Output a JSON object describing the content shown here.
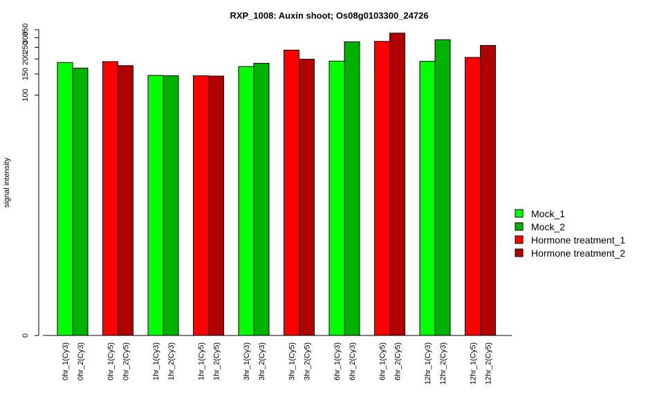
{
  "chart_data": {
    "type": "bar",
    "title": "RXP_1008: Auxin shoot; Os08g0103300_24726",
    "xlabel": "",
    "ylabel": "signal intensity",
    "y_ticks": [
      0,
      100,
      150,
      200,
      250,
      300,
      350
    ],
    "y_tick_labels": [
      "0",
      "100",
      "150",
      "200",
      "250",
      "300",
      "350"
    ],
    "y_scale": "log",
    "ylim": [
      0,
      350
    ],
    "grid": false,
    "legend_position": "right",
    "series": [
      {
        "name": "Mock_1",
        "color": "#00ff00"
      },
      {
        "name": "Mock_2",
        "color": "#00b200"
      },
      {
        "name": "Hormone treatment_1",
        "color": "#ff0000"
      },
      {
        "name": "Hormone treatment_2",
        "color": "#b20000"
      }
    ],
    "bars": [
      {
        "label": "0hr_1(Cy3)",
        "value": 187,
        "series": 0
      },
      {
        "label": "0hr_2(Cy3)",
        "value": 168,
        "series": 1
      },
      {
        "label": "0hr_1(Cy5)",
        "value": 190,
        "series": 2
      },
      {
        "label": "0hr_2(Cy5)",
        "value": 176,
        "series": 3
      },
      {
        "label": "1hr_1(Cy3)",
        "value": 146,
        "series": 0
      },
      {
        "label": "1hr_2(Cy3)",
        "value": 145,
        "series": 1
      },
      {
        "label": "1hr_1(Cy5)",
        "value": 145,
        "series": 2
      },
      {
        "label": "1hr_2(Cy5)",
        "value": 144,
        "series": 3
      },
      {
        "label": "3hr_1(Cy3)",
        "value": 173,
        "series": 0
      },
      {
        "label": "3hr_2(Cy3)",
        "value": 184,
        "series": 1
      },
      {
        "label": "3hr_1(Cy5)",
        "value": 237,
        "series": 2
      },
      {
        "label": "3hr_2(Cy5)",
        "value": 199,
        "series": 3
      },
      {
        "label": "6hr_1(Cy3)",
        "value": 192,
        "series": 0
      },
      {
        "label": "6hr_2(Cy3)",
        "value": 278,
        "series": 1
      },
      {
        "label": "6hr_1(Cy5)",
        "value": 280,
        "series": 2
      },
      {
        "label": "6hr_2(Cy5)",
        "value": 328,
        "series": 3
      },
      {
        "label": "12hr_1(Cy3)",
        "value": 191,
        "series": 0
      },
      {
        "label": "12hr_2(Cy3)",
        "value": 289,
        "series": 1
      },
      {
        "label": "12hr_1(Cy5)",
        "value": 206,
        "series": 2
      },
      {
        "label": "12hr_2(Cy5)",
        "value": 259,
        "series": 3
      }
    ]
  }
}
